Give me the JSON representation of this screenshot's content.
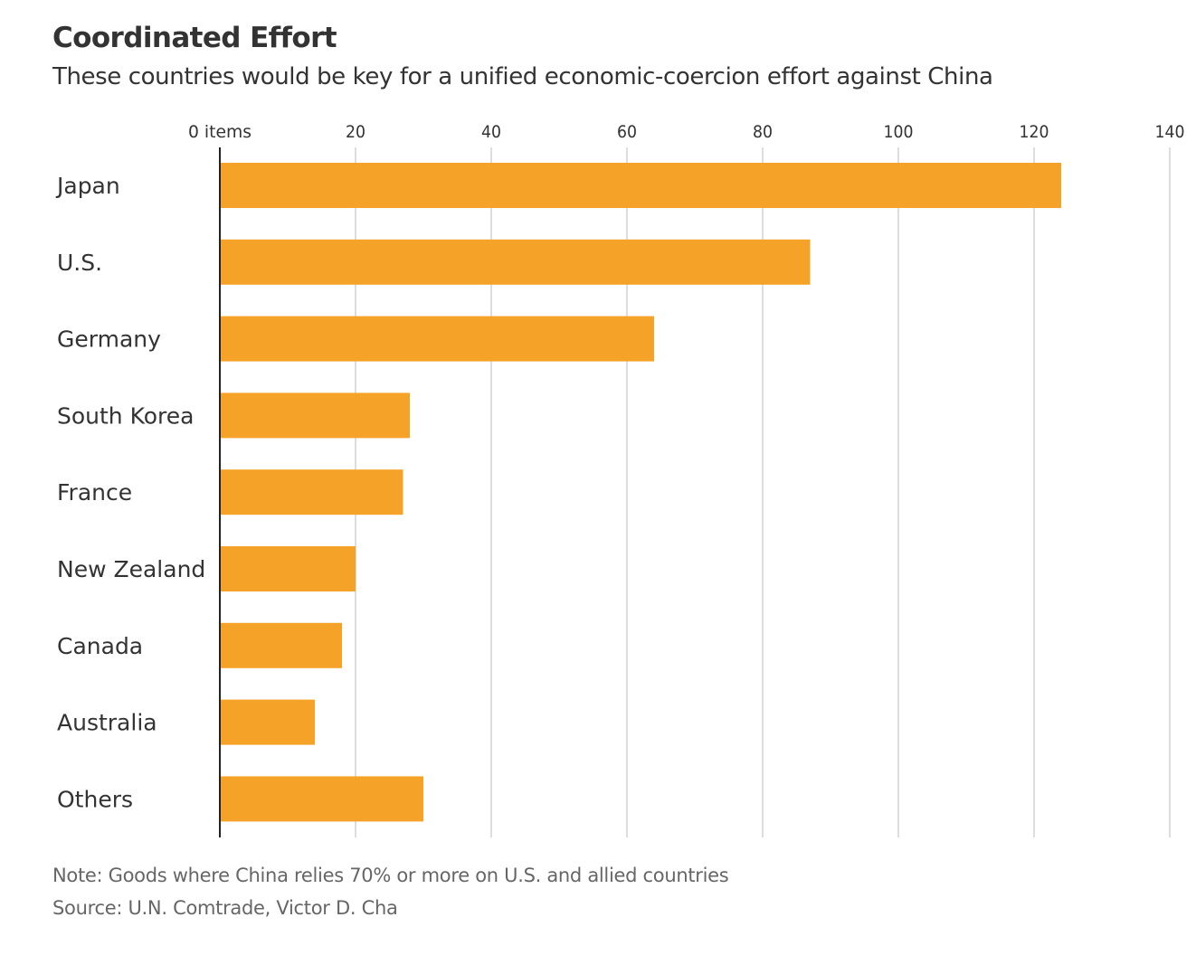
{
  "title": "Coordinated Effort",
  "subtitle": "These countries would be key for a unified economic-coercion effort against China",
  "note": "Note: Goods where China relies 70% or more on U.S. and allied countries",
  "source": "Source: U.N. Comtrade, Victor D. Cha",
  "chart_data": {
    "type": "bar",
    "orientation": "horizontal",
    "categories": [
      "Japan",
      "U.S.",
      "Germany",
      "South Korea",
      "France",
      "New Zealand",
      "Canada",
      "Australia",
      "Others"
    ],
    "values": [
      124,
      87,
      64,
      28,
      27,
      20,
      18,
      14,
      30
    ],
    "xlim": [
      0,
      140
    ],
    "xticks": [
      0,
      20,
      40,
      60,
      80,
      100,
      120,
      140
    ],
    "xtick_labels": [
      "0 items",
      "20",
      "40",
      "60",
      "80",
      "100",
      "120",
      "140"
    ],
    "xaxis_position": "top",
    "grid": true,
    "legend": "none",
    "colors": {
      "bar": "#f5a328",
      "grid": "#dddddd",
      "axis": "#222222",
      "label": "#333333"
    }
  }
}
